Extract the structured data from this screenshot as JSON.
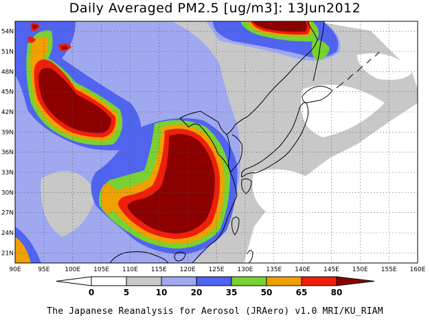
{
  "title": "Daily Averaged PM2.5 [ug/m3]: 13Jun2012",
  "footer": "The Japanese Reanalysis for Aerosol (JRAero) v1.0 MRI/KU_RIAM",
  "map": {
    "lon_range": [
      90,
      160
    ],
    "lat_range": [
      19.5,
      55.5
    ],
    "lon_ticks": [
      "90E",
      "95E",
      "100E",
      "105E",
      "110E",
      "115E",
      "120E",
      "125E",
      "130E",
      "135E",
      "140E",
      "145E",
      "150E",
      "155E",
      "160E"
    ],
    "lat_ticks": [
      "21N",
      "24N",
      "27N",
      "30N",
      "33N",
      "36N",
      "39N",
      "42N",
      "45N",
      "48N",
      "51N",
      "54N"
    ],
    "grid": true
  },
  "colorbar": {
    "levels": [
      "0",
      "5",
      "10",
      "20",
      "35",
      "50",
      "65",
      "80"
    ],
    "colors": {
      "below_0": "#ffffff",
      "0_5": "#ffffff",
      "5_10": "#c8c8c8",
      "10_20": "#a0a8f0",
      "20_35": "#5064f0",
      "35_50": "#78d232",
      "50_65": "#f0a000",
      "65_80": "#f01e0a",
      "above_80": "#8c0000"
    }
  }
}
